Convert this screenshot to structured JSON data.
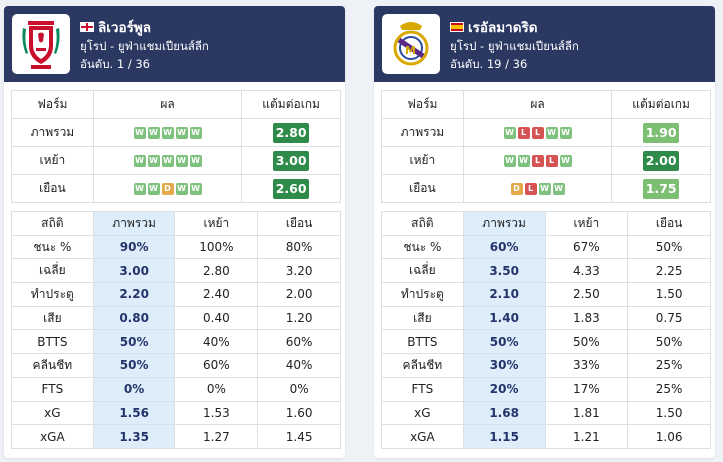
{
  "teams": [
    {
      "id": "home",
      "name": "ลิเวอร์พูล",
      "competition": "ยุโรป - ยูฟ่าแชมเปียนส์ลีก",
      "rank_label": "อันดับ.",
      "rank_value": "1 / 36",
      "flag": "england-flag-icon",
      "logo": "liverpool-crest-icon",
      "form_headers": [
        "ฟอร์ม",
        "ผล",
        "แต้มต่อเกม"
      ],
      "form_rows": [
        {
          "label": "ภาพรวม",
          "results": [
            "W",
            "W",
            "W",
            "W",
            "W"
          ],
          "ppg": "2.80",
          "ppg_color": "#2e8b4a"
        },
        {
          "label": "เหย้า",
          "results": [
            "W",
            "W",
            "W",
            "W",
            "W"
          ],
          "ppg": "3.00",
          "ppg_color": "#2e8b4a"
        },
        {
          "label": "เยือน",
          "results": [
            "W",
            "W",
            "D",
            "W",
            "W"
          ],
          "ppg": "2.60",
          "ppg_color": "#2e8b4a"
        }
      ],
      "stats_headers": [
        "สถิติ",
        "ภาพรวม",
        "เหย้า",
        "เยือน"
      ],
      "stats_rows": [
        {
          "label": "ชนะ %",
          "overall": "90%",
          "home": "100%",
          "away": "80%"
        },
        {
          "label": "เฉลี่ย",
          "overall": "3.00",
          "home": "2.80",
          "away": "3.20"
        },
        {
          "label": "ทำประตู",
          "overall": "2.20",
          "home": "2.40",
          "away": "2.00"
        },
        {
          "label": "เสีย",
          "overall": "0.80",
          "home": "0.40",
          "away": "1.20"
        },
        {
          "label": "BTTS",
          "overall": "50%",
          "home": "40%",
          "away": "60%"
        },
        {
          "label": "คลีนชีท",
          "overall": "50%",
          "home": "60%",
          "away": "40%"
        },
        {
          "label": "FTS",
          "overall": "0%",
          "home": "0%",
          "away": "0%"
        },
        {
          "label": "xG",
          "overall": "1.56",
          "home": "1.53",
          "away": "1.60"
        },
        {
          "label": "xGA",
          "overall": "1.35",
          "home": "1.27",
          "away": "1.45"
        }
      ]
    },
    {
      "id": "away",
      "name": "เรอัลมาดริด",
      "competition": "ยุโรป - ยูฟ่าแชมเปียนส์ลีก",
      "rank_label": "อันดับ.",
      "rank_value": "19 / 36",
      "flag": "spain-flag-icon",
      "logo": "real-madrid-crest-icon",
      "form_headers": [
        "ฟอร์ม",
        "ผล",
        "แต้มต่อเกม"
      ],
      "form_rows": [
        {
          "label": "ภาพรวม",
          "results": [
            "W",
            "L",
            "L",
            "W",
            "W"
          ],
          "ppg": "1.90",
          "ppg_color": "#7cbf72"
        },
        {
          "label": "เหย้า",
          "results": [
            "W",
            "W",
            "L",
            "L",
            "W"
          ],
          "ppg": "2.00",
          "ppg_color": "#2e8b4a"
        },
        {
          "label": "เยือน",
          "results": [
            "D",
            "L",
            "W",
            "W"
          ],
          "ppg": "1.75",
          "ppg_color": "#7cbf72"
        }
      ],
      "stats_headers": [
        "สถิติ",
        "ภาพรวม",
        "เหย้า",
        "เยือน"
      ],
      "stats_rows": [
        {
          "label": "ชนะ %",
          "overall": "60%",
          "home": "67%",
          "away": "50%"
        },
        {
          "label": "เฉลี่ย",
          "overall": "3.50",
          "home": "4.33",
          "away": "2.25"
        },
        {
          "label": "ทำประตู",
          "overall": "2.10",
          "home": "2.50",
          "away": "1.50"
        },
        {
          "label": "เสีย",
          "overall": "1.40",
          "home": "1.83",
          "away": "0.75"
        },
        {
          "label": "BTTS",
          "overall": "50%",
          "home": "50%",
          "away": "50%"
        },
        {
          "label": "คลีนชีท",
          "overall": "30%",
          "home": "33%",
          "away": "25%"
        },
        {
          "label": "FTS",
          "overall": "20%",
          "home": "17%",
          "away": "25%"
        },
        {
          "label": "xG",
          "overall": "1.68",
          "home": "1.81",
          "away": "1.50"
        },
        {
          "label": "xGA",
          "overall": "1.15",
          "home": "1.21",
          "away": "1.06"
        }
      ]
    }
  ],
  "colors": {
    "header_bg": "#2a3862",
    "win": "#7fc17f",
    "loss": "#d65353",
    "draw": "#e3a94a",
    "highlight_col": "#ddeefa"
  }
}
